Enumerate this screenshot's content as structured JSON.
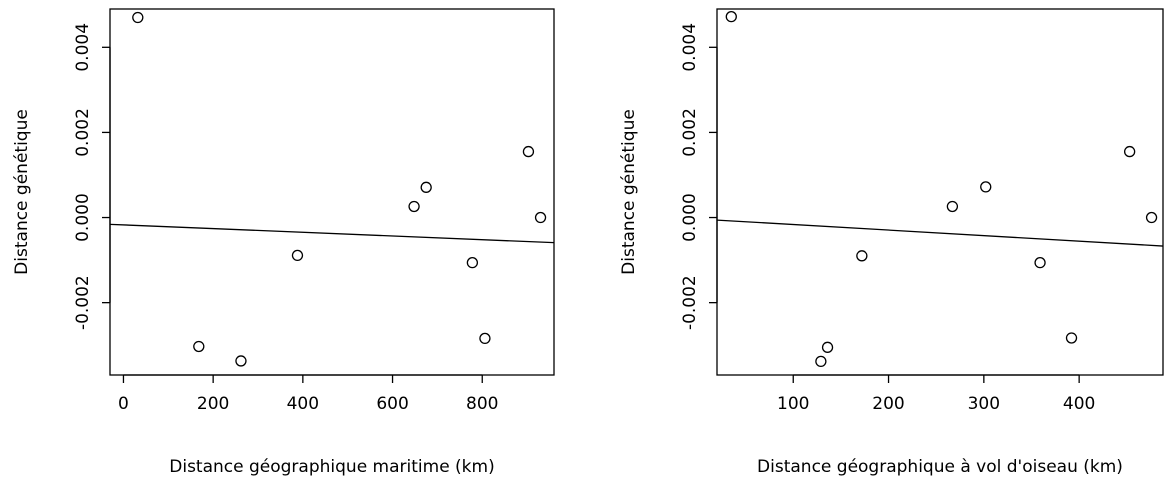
{
  "chart_data": [
    {
      "type": "scatter",
      "xlabel": "Distance géographique maritime (km)",
      "ylabel": "Distance génétique",
      "xlim": [
        -30,
        960
      ],
      "ylim": [
        -0.0037,
        0.0049
      ],
      "x_ticks": [
        0,
        200,
        400,
        600,
        800
      ],
      "x_tick_labels": [
        "0",
        "200",
        "400",
        "600",
        "800"
      ],
      "y_ticks": [
        -0.002,
        0.0,
        0.002,
        0.004
      ],
      "y_tick_labels": [
        "-0.002",
        "0.000",
        "0.002",
        "0.004"
      ],
      "grid": false,
      "points": [
        {
          "x": 32,
          "y": 0.0047
        },
        {
          "x": 168,
          "y": -0.00303
        },
        {
          "x": 262,
          "y": -0.00337
        },
        {
          "x": 388,
          "y": -0.00089
        },
        {
          "x": 648,
          "y": 0.00026
        },
        {
          "x": 675,
          "y": 0.00071
        },
        {
          "x": 778,
          "y": -0.00106
        },
        {
          "x": 806,
          "y": -0.00284
        },
        {
          "x": 903,
          "y": 0.00155
        },
        {
          "x": 930,
          "y": 0.0
        }
      ],
      "fit_line": {
        "x": [
          -30,
          960
        ],
        "y": [
          -0.00016,
          -0.00059
        ]
      }
    },
    {
      "type": "scatter",
      "xlabel": "Distance géographique à vol d'oiseau (km)",
      "ylabel": "Distance génétique",
      "xlim": [
        20,
        488
      ],
      "ylim": [
        -0.0037,
        0.0049
      ],
      "x_ticks": [
        100,
        200,
        300,
        400
      ],
      "x_tick_labels": [
        "100",
        "200",
        "300",
        "400"
      ],
      "y_ticks": [
        -0.002,
        0.0,
        0.002,
        0.004
      ],
      "y_tick_labels": [
        "-0.002",
        "0.000",
        "0.002",
        "0.004"
      ],
      "grid": false,
      "points": [
        {
          "x": 35,
          "y": 0.00472
        },
        {
          "x": 129,
          "y": -0.00338
        },
        {
          "x": 136,
          "y": -0.00305
        },
        {
          "x": 172,
          "y": -0.0009
        },
        {
          "x": 267,
          "y": 0.00026
        },
        {
          "x": 302,
          "y": 0.00072
        },
        {
          "x": 359,
          "y": -0.00106
        },
        {
          "x": 392,
          "y": -0.00283
        },
        {
          "x": 453,
          "y": 0.00155
        },
        {
          "x": 476,
          "y": 0.0
        }
      ],
      "fit_line": {
        "x": [
          20,
          488
        ],
        "y": [
          -6e-05,
          -0.00067
        ]
      }
    }
  ]
}
